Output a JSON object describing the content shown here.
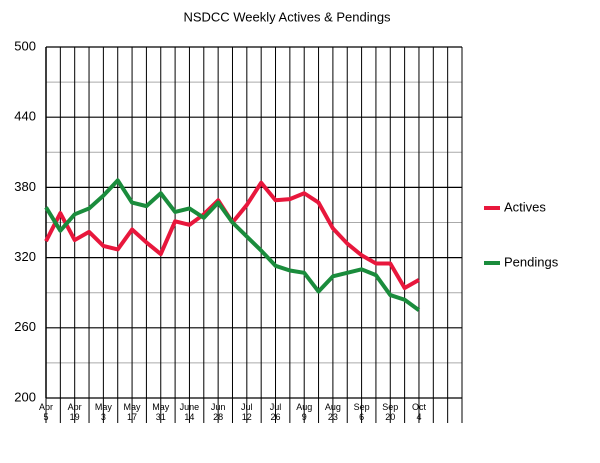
{
  "chart_data": {
    "type": "line",
    "title": "NSDCC Weekly Actives & Pendings",
    "categories": [
      "Apr 5",
      null,
      "Apr 19",
      null,
      "May 3",
      null,
      "May 17",
      null,
      "May 31",
      null,
      "June 14",
      null,
      "Jun 28",
      null,
      "Jul 12",
      null,
      "Jul 26",
      null,
      "Aug 9",
      null,
      "Aug 23",
      null,
      "Sep 6",
      null,
      "Sep 20",
      null,
      "Oct 4",
      null,
      null,
      null
    ],
    "series": [
      {
        "name": "Actives",
        "color": "#e8173c",
        "values": [
          334,
          358,
          335,
          342,
          330,
          327,
          344,
          333,
          323,
          351,
          348,
          357,
          369,
          350,
          365,
          384,
          369,
          370,
          375,
          367,
          345,
          332,
          322,
          315,
          315,
          294,
          301,
          null,
          null,
          null
        ]
      },
      {
        "name": "Pendings",
        "color": "#1a8c3c",
        "values": [
          363,
          343,
          357,
          362,
          373,
          386,
          367,
          364,
          375,
          359,
          362,
          354,
          367,
          350,
          338,
          326,
          313,
          309,
          307,
          291,
          304,
          307,
          310,
          305,
          288,
          284,
          275,
          null,
          null,
          null
        ]
      }
    ],
    "ylim": [
      200,
      500
    ],
    "yticks": [
      200,
      260,
      320,
      380,
      440,
      500
    ],
    "grid": true,
    "legend": "right"
  }
}
